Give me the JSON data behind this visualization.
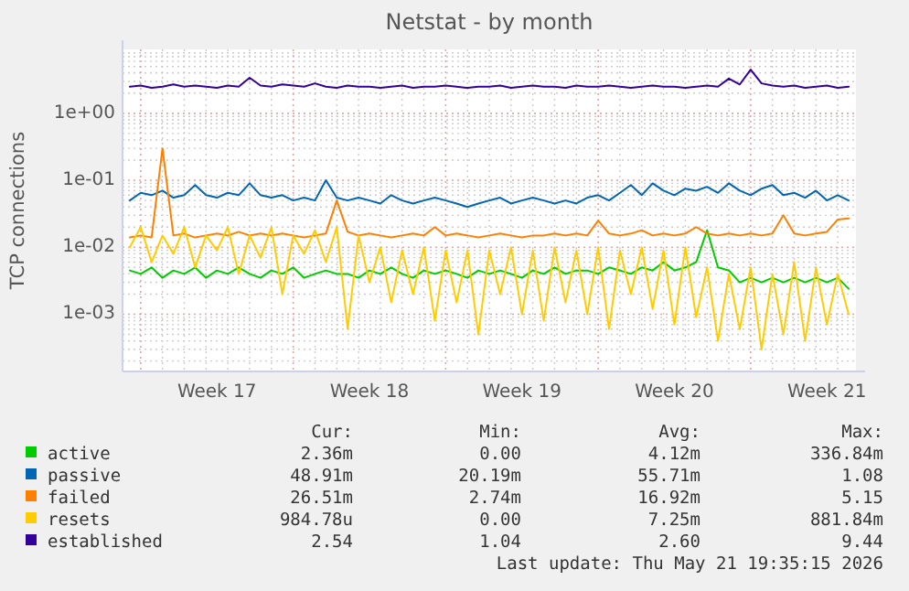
{
  "chart_data": {
    "type": "line",
    "title": "Netstat - by month",
    "ylabel": "TCP connections",
    "categories": [
      null,
      null,
      null,
      null,
      null,
      null,
      null,
      null,
      "Week 17",
      null,
      null,
      null,
      null,
      null,
      null,
      null,
      null,
      null,
      null,
      null,
      null,
      null,
      "Week 18",
      null,
      null,
      null,
      null,
      null,
      null,
      null,
      null,
      null,
      null,
      null,
      null,
      null,
      "Week 19",
      null,
      null,
      null,
      null,
      null,
      null,
      null,
      null,
      null,
      null,
      null,
      null,
      null,
      "Week 20",
      null,
      null,
      null,
      null,
      null,
      null,
      null,
      null,
      null,
      null,
      null,
      null,
      null,
      "Week 21",
      null,
      null
    ],
    "ylim": [
      0.00014,
      9
    ],
    "log": true,
    "yticks": [
      {
        "value": 0.001,
        "label": "1e-03"
      },
      {
        "value": 0.01,
        "label": "1e-02"
      },
      {
        "value": 0.1,
        "label": "1e-01"
      },
      {
        "value": 1,
        "label": "1e+00"
      }
    ],
    "grid": true,
    "legend": "bottom",
    "series": [
      {
        "name": "active",
        "color": "#00cc00",
        "values": [
          0.0045,
          0.004,
          0.005,
          0.0035,
          0.0045,
          0.004,
          0.005,
          0.0035,
          0.0045,
          0.004,
          0.005,
          0.004,
          0.0035,
          0.0045,
          0.004,
          0.005,
          0.0035,
          0.004,
          0.0045,
          0.004,
          0.004,
          0.0035,
          0.0045,
          0.004,
          0.005,
          0.004,
          0.0035,
          0.0045,
          0.004,
          0.0045,
          0.004,
          0.0035,
          0.0045,
          0.004,
          0.0045,
          0.004,
          0.0035,
          0.0045,
          0.004,
          0.005,
          0.004,
          0.0045,
          0.0045,
          0.004,
          0.005,
          0.0045,
          0.004,
          0.005,
          0.0045,
          0.006,
          0.0045,
          0.005,
          0.006,
          0.018,
          0.005,
          0.0045,
          0.003,
          0.0035,
          0.003,
          0.0035,
          0.003,
          0.0035,
          0.003,
          0.0035,
          0.003,
          0.0035,
          0.0024
        ]
      },
      {
        "name": "passive",
        "color": "#0066b3",
        "values": [
          0.05,
          0.065,
          0.06,
          0.07,
          0.055,
          0.06,
          0.085,
          0.06,
          0.055,
          0.065,
          0.06,
          0.09,
          0.06,
          0.055,
          0.06,
          0.05,
          0.055,
          0.05,
          0.1,
          0.055,
          0.05,
          0.055,
          0.05,
          0.045,
          0.06,
          0.05,
          0.045,
          0.05,
          0.055,
          0.05,
          0.045,
          0.04,
          0.045,
          0.05,
          0.055,
          0.045,
          0.05,
          0.055,
          0.05,
          0.045,
          0.05,
          0.045,
          0.055,
          0.06,
          0.05,
          0.065,
          0.085,
          0.06,
          0.09,
          0.07,
          0.06,
          0.075,
          0.07,
          0.08,
          0.065,
          0.09,
          0.07,
          0.06,
          0.075,
          0.085,
          0.06,
          0.065,
          0.055,
          0.07,
          0.05,
          0.06,
          0.05
        ]
      },
      {
        "name": "failed",
        "color": "#ff8000",
        "values": [
          0.014,
          0.015,
          0.014,
          0.3,
          0.015,
          0.016,
          0.014,
          0.015,
          0.016,
          0.015,
          0.017,
          0.015,
          0.016,
          0.015,
          0.016,
          0.015,
          0.014,
          0.015,
          0.016,
          0.05,
          0.017,
          0.015,
          0.016,
          0.015,
          0.014,
          0.015,
          0.016,
          0.015,
          0.02,
          0.015,
          0.016,
          0.015,
          0.014,
          0.015,
          0.016,
          0.015,
          0.014,
          0.015,
          0.015,
          0.016,
          0.015,
          0.016,
          0.015,
          0.025,
          0.016,
          0.015,
          0.016,
          0.018,
          0.015,
          0.016,
          0.015,
          0.016,
          0.02,
          0.016,
          0.015,
          0.016,
          0.015,
          0.016,
          0.015,
          0.016,
          0.03,
          0.016,
          0.015,
          0.016,
          0.017,
          0.026,
          0.027
        ]
      },
      {
        "name": "resets",
        "color": "#ffcc00",
        "values": [
          0.01,
          0.02,
          0.006,
          0.015,
          0.008,
          0.02,
          0.005,
          0.015,
          0.009,
          0.02,
          0.004,
          0.015,
          0.007,
          0.02,
          0.002,
          0.015,
          0.008,
          0.018,
          0.006,
          0.02,
          0.0006,
          0.015,
          0.003,
          0.01,
          0.0015,
          0.009,
          0.002,
          0.01,
          0.0008,
          0.009,
          0.0015,
          0.009,
          0.0005,
          0.009,
          0.002,
          0.01,
          0.001,
          0.009,
          0.0008,
          0.01,
          0.0015,
          0.009,
          0.001,
          0.01,
          0.0006,
          0.009,
          0.002,
          0.01,
          0.0012,
          0.009,
          0.0007,
          0.01,
          0.0009,
          0.005,
          0.0004,
          0.004,
          0.0006,
          0.005,
          0.0003,
          0.004,
          0.0005,
          0.006,
          0.0004,
          0.005,
          0.0007,
          0.004,
          0.001
        ]
      },
      {
        "name": "established",
        "color": "#330099",
        "values": [
          2.5,
          2.6,
          2.4,
          2.5,
          2.7,
          2.5,
          2.6,
          2.5,
          2.4,
          2.6,
          2.5,
          3.4,
          2.6,
          2.5,
          2.7,
          2.6,
          2.5,
          2.8,
          2.5,
          2.4,
          2.6,
          2.5,
          2.5,
          2.4,
          2.5,
          2.6,
          2.4,
          2.5,
          2.5,
          2.6,
          2.5,
          2.4,
          2.5,
          2.5,
          2.6,
          2.4,
          2.5,
          2.6,
          2.5,
          2.5,
          2.4,
          2.6,
          2.5,
          2.5,
          2.6,
          2.5,
          2.4,
          2.5,
          2.6,
          2.5,
          2.5,
          2.4,
          2.5,
          2.6,
          2.5,
          3.3,
          2.7,
          4.5,
          2.8,
          2.6,
          2.5,
          2.6,
          2.4,
          2.5,
          2.6,
          2.4,
          2.5
        ]
      }
    ],
    "annotations": [
      "Cur:",
      "Min:",
      "Avg:",
      "Max:",
      "2.36m",
      "0.00",
      "4.12m",
      "336.84m",
      "48.91m",
      "20.19m",
      "55.71m",
      "1.08",
      "26.51m",
      "2.74m",
      "16.92m",
      "5.15",
      "984.78u",
      "0.00",
      "7.25m",
      "881.84m",
      "2.54",
      "1.04",
      "2.60",
      "9.44",
      "Last update: Thu May 21 19:35:15 2026"
    ]
  }
}
